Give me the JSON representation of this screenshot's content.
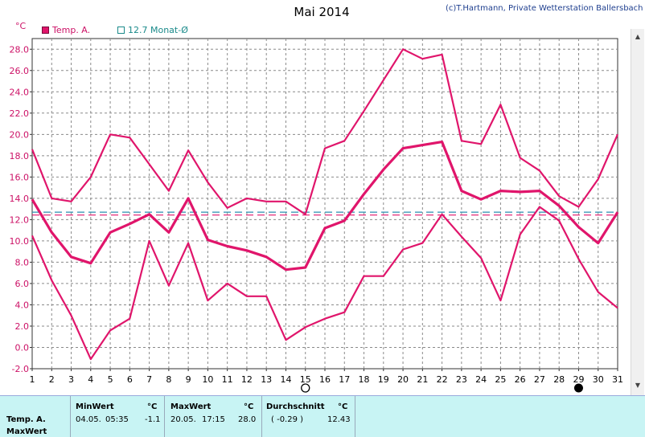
{
  "title": "Mai 2014",
  "copyright": "(c)T.Hartmann, Private Wetterstation Ballersbach",
  "unit": "°C",
  "legend": {
    "series_label": "Temp. A.",
    "average_label": "12.7 Monat-Ø"
  },
  "colors": {
    "series": "#e0156b",
    "average_line": "#2a8fb0",
    "avg_line2": "#e0156b",
    "grid": "#8a8a8a",
    "summary_bg": "#c8f4f4"
  },
  "icons": {
    "first_quarter": "open-circle-icon",
    "new_moon": "filled-circle-icon"
  },
  "moon_markers": {
    "open_day": 15,
    "filled_day": 29
  },
  "summary": {
    "row_label_1": "Temp. A.",
    "row_label_2": "MaxWert",
    "min": {
      "head": "MinWert",
      "unit": "°C",
      "date": "04.05.",
      "time": "05:35",
      "value": "-1.1"
    },
    "max": {
      "head": "MaxWert",
      "unit": "°C",
      "date": "20.05.",
      "time": "17:15",
      "value": "28.0"
    },
    "avg": {
      "head": "Durchschnitt",
      "unit": "°C",
      "diff": "( -0.29 )",
      "value": "12.43"
    }
  },
  "chart_data": {
    "type": "line",
    "title": "Mai 2014",
    "ylabel": "°C",
    "xlabel": "",
    "ylim": [
      -2,
      29
    ],
    "yticks": [
      "-2.0",
      "0.0",
      "2.0",
      "4.0",
      "6.0",
      "8.0",
      "10.0",
      "12.0",
      "14.0",
      "16.0",
      "18.0",
      "20.0",
      "22.0",
      "24.0",
      "26.0",
      "28.0"
    ],
    "categories": [
      "1",
      "2",
      "3",
      "4",
      "5",
      "6",
      "7",
      "8",
      "9",
      "10",
      "11",
      "12",
      "13",
      "14",
      "15",
      "16",
      "17",
      "18",
      "19",
      "20",
      "21",
      "22",
      "23",
      "24",
      "25",
      "26",
      "27",
      "28",
      "29",
      "30",
      "31"
    ],
    "grid": true,
    "legend_position": "top-left",
    "series": [
      {
        "name": "Temp. A.",
        "role": "max",
        "values": [
          18.6,
          14.0,
          13.7,
          16.0,
          20.0,
          19.7,
          17.2,
          14.7,
          18.5,
          15.5,
          13.1,
          14.0,
          13.7,
          13.7,
          12.5,
          18.7,
          19.4,
          22.2,
          25.1,
          28.0,
          27.1,
          27.5,
          19.4,
          19.1,
          22.8,
          17.8,
          16.6,
          14.2,
          13.2,
          15.8,
          20.0
        ]
      },
      {
        "role": "mean",
        "values": [
          13.9,
          10.8,
          8.5,
          7.9,
          10.8,
          11.6,
          12.5,
          10.8,
          14.0,
          10.1,
          9.5,
          9.1,
          8.5,
          7.3,
          7.5,
          11.2,
          11.9,
          14.4,
          16.7,
          18.7,
          19.0,
          19.3,
          14.7,
          13.9,
          14.7,
          14.6,
          14.7,
          13.3,
          11.3,
          9.8,
          12.7
        ]
      },
      {
        "role": "min",
        "values": [
          10.5,
          6.3,
          3.0,
          -1.1,
          1.6,
          2.7,
          10.0,
          5.8,
          9.8,
          4.4,
          6.0,
          4.8,
          4.8,
          0.7,
          1.9,
          2.7,
          3.3,
          6.7,
          6.7,
          9.2,
          9.8,
          12.5,
          10.4,
          8.4,
          4.4,
          10.6,
          13.2,
          11.9,
          8.3,
          5.2,
          3.7
        ]
      }
    ],
    "reference_lines": [
      {
        "label": "12.7 Monat-Ø",
        "value": 12.7,
        "style": "dashed"
      },
      {
        "value": 12.43,
        "style": "dashed"
      }
    ]
  }
}
